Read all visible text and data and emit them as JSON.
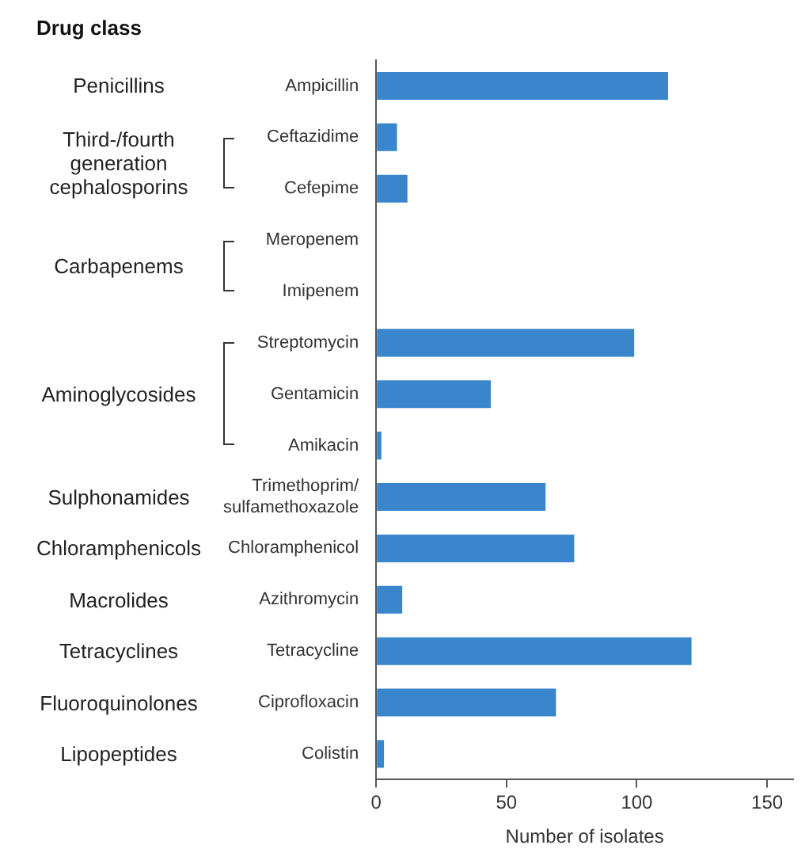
{
  "chart_data": {
    "type": "bar",
    "orientation": "horizontal",
    "title": "Drug class",
    "xlabel": "Number of isolates",
    "categories": [
      "Ampicillin",
      "Ceftazidime",
      "Cefepime",
      "Meropenem",
      "Imipenem",
      "Streptomycin",
      "Gentamicin",
      "Amikacin",
      "Trimethoprim/sulfamethoxazole",
      "Chloramphenicol",
      "Azithromycin",
      "Tetracycline",
      "Ciprofloxacin",
      "Colistin"
    ],
    "values": [
      112,
      8,
      12,
      0,
      0,
      99,
      44,
      2,
      65,
      76,
      10,
      121,
      69,
      3
    ],
    "color": "#3a86cc",
    "xlim": [
      0,
      160
    ],
    "xticks": [
      0,
      50,
      100,
      150
    ],
    "grid": false,
    "annotations": [
      "Penicillins",
      "Third-/fourth generation cephalosporins",
      "Carbapenems",
      "Aminoglycosides",
      "Sulphonamides",
      "Chloramphenicols",
      "Macrolides",
      "Tetracyclines",
      "Fluoroquinolones",
      "Lipopeptides"
    ]
  }
}
